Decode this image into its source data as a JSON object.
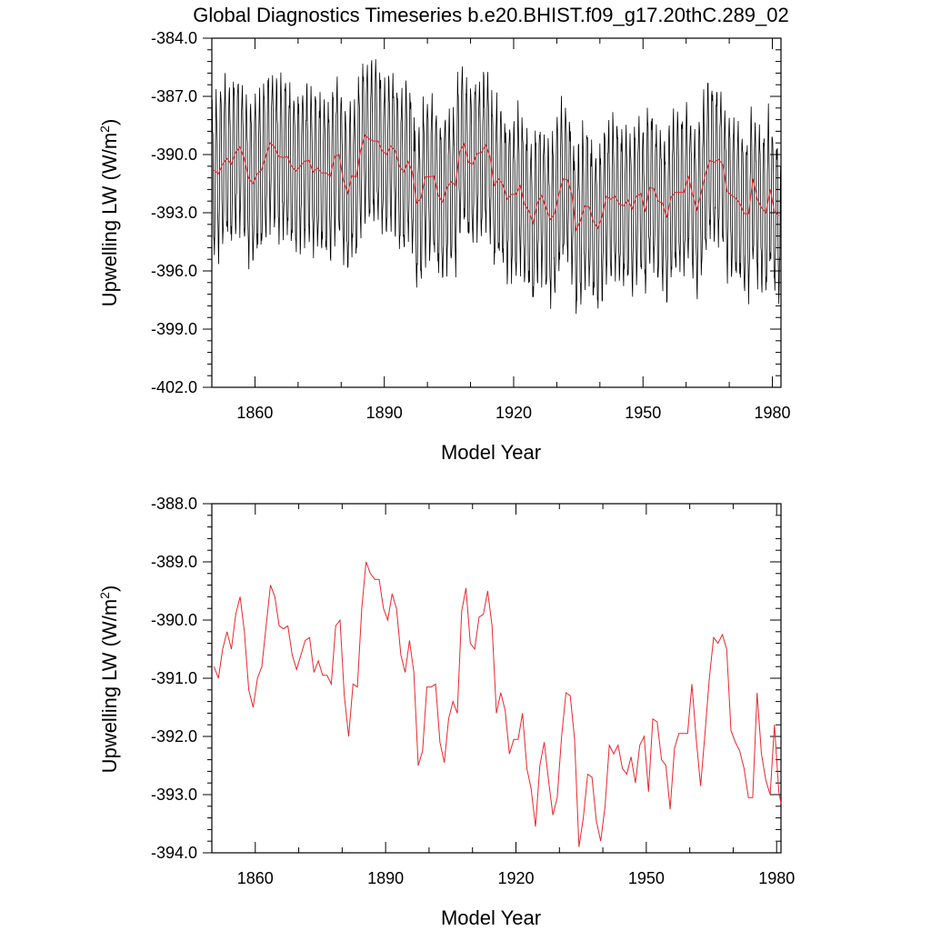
{
  "title": "Global Diagnostics Timeseries b.e20.BHIST.f09_g17.20thC.289_02",
  "colors": {
    "monthly": "#000000",
    "annual": "#e8282c",
    "axis": "#000000"
  },
  "chart_data": [
    {
      "type": "line",
      "xlabel": "Model Year",
      "ylabel": "Upwelling LW (W/m",
      "ylabel_sup": "2",
      "ylabel_close": ")",
      "xlim": [
        1850,
        1982
      ],
      "ylim": [
        -402.0,
        -384.0
      ],
      "xticks": [
        1860,
        1890,
        1920,
        1950,
        1980
      ],
      "xtick_labels": [
        "1860",
        "1890",
        "1920",
        "1950",
        "1980"
      ],
      "yticks": [
        -384.0,
        -387.0,
        -390.0,
        -393.0,
        -396.0,
        -399.0,
        -402.0
      ],
      "ytick_labels": [
        "-384.0",
        "-387.0",
        "-390.0",
        "-393.0",
        "-396.0",
        "-399.0",
        "-402.0"
      ],
      "series": [
        {
          "name": "monthly",
          "color": "#000000",
          "kind": "seasonal",
          "amplitude": 3.6,
          "values_ref": "annual_mean"
        },
        {
          "name": "annual_mean",
          "color": "#e8282c",
          "values_ref": "annual_mean"
        }
      ]
    },
    {
      "type": "line",
      "xlabel": "Model Year",
      "ylabel": "Upwelling LW (W/m",
      "ylabel_sup": "2",
      "ylabel_close": ")",
      "xlim": [
        1850,
        1981
      ],
      "ylim": [
        -394.0,
        -388.0
      ],
      "xticks": [
        1860,
        1890,
        1920,
        1950,
        1980
      ],
      "xtick_labels": [
        "1860",
        "1890",
        "1920",
        "1950",
        "1980"
      ],
      "yticks": [
        -388.0,
        -389.0,
        -390.0,
        -391.0,
        -392.0,
        -393.0,
        -394.0
      ],
      "ytick_labels": [
        "-388.0",
        "-389.0",
        "-390.0",
        "-391.0",
        "-392.0",
        "-393.0",
        "-394.0"
      ],
      "series": [
        {
          "name": "annual_mean",
          "color": "#e8282c",
          "values_ref": "annual_mean"
        }
      ]
    }
  ],
  "annual_mean": {
    "x": [
      1850,
      1851,
      1852,
      1853,
      1854,
      1855,
      1856,
      1857,
      1858,
      1859,
      1860,
      1861,
      1862,
      1863,
      1864,
      1865,
      1866,
      1867,
      1868,
      1869,
      1870,
      1871,
      1872,
      1873,
      1874,
      1875,
      1876,
      1877,
      1878,
      1879,
      1880,
      1881,
      1882,
      1883,
      1884,
      1885,
      1886,
      1887,
      1888,
      1889,
      1890,
      1891,
      1892,
      1893,
      1894,
      1895,
      1896,
      1897,
      1898,
      1899,
      1900,
      1901,
      1902,
      1903,
      1904,
      1905,
      1906,
      1907,
      1908,
      1909,
      1910,
      1911,
      1912,
      1913,
      1914,
      1915,
      1916,
      1917,
      1918,
      1919,
      1920,
      1921,
      1922,
      1923,
      1924,
      1925,
      1926,
      1927,
      1928,
      1929,
      1930,
      1931,
      1932,
      1933,
      1934,
      1935,
      1936,
      1937,
      1938,
      1939,
      1940,
      1941,
      1942,
      1943,
      1944,
      1945,
      1946,
      1947,
      1948,
      1949,
      1950,
      1951,
      1952,
      1953,
      1954,
      1955,
      1956,
      1957,
      1958,
      1959,
      1960,
      1961,
      1962,
      1963,
      1964,
      1965,
      1966,
      1967,
      1968,
      1969,
      1970,
      1971,
      1972,
      1973,
      1974,
      1975,
      1976,
      1977,
      1978,
      1979,
      1980,
      1981
    ],
    "y": [
      -390.8,
      -391.0,
      -390.5,
      -390.2,
      -390.5,
      -389.9,
      -389.6,
      -390.2,
      -391.2,
      -391.5,
      -391.0,
      -390.8,
      -390.1,
      -389.4,
      -389.6,
      -390.1,
      -390.15,
      -390.1,
      -390.6,
      -390.85,
      -390.6,
      -390.35,
      -390.3,
      -390.9,
      -390.7,
      -390.95,
      -390.95,
      -391.1,
      -390.1,
      -390.0,
      -391.3,
      -392.0,
      -391.1,
      -391.15,
      -389.8,
      -389.0,
      -389.2,
      -389.3,
      -389.3,
      -389.8,
      -390.0,
      -389.55,
      -389.8,
      -390.6,
      -390.9,
      -390.35,
      -390.9,
      -392.5,
      -392.25,
      -391.15,
      -391.15,
      -391.1,
      -392.1,
      -392.45,
      -391.7,
      -391.4,
      -391.6,
      -389.85,
      -389.45,
      -390.4,
      -390.5,
      -389.95,
      -389.9,
      -389.5,
      -390.1,
      -391.6,
      -391.25,
      -391.55,
      -392.3,
      -392.05,
      -392.05,
      -391.6,
      -392.55,
      -392.9,
      -393.55,
      -392.5,
      -392.1,
      -392.75,
      -393.35,
      -393.05,
      -392.0,
      -391.25,
      -391.3,
      -392.05,
      -393.9,
      -393.4,
      -392.65,
      -392.7,
      -393.45,
      -393.8,
      -393.2,
      -392.15,
      -392.3,
      -392.15,
      -392.55,
      -392.65,
      -392.35,
      -392.8,
      -392.15,
      -392.0,
      -392.95,
      -391.7,
      -391.75,
      -392.4,
      -392.5,
      -393.25,
      -392.2,
      -391.95,
      -391.95,
      -391.95,
      -391.1,
      -392.05,
      -392.85,
      -391.95,
      -391.0,
      -390.3,
      -390.4,
      -390.25,
      -390.5,
      -391.9,
      -392.1,
      -392.25,
      -392.55,
      -393.05,
      -393.05,
      -391.25,
      -392.3,
      -392.75,
      -393.0,
      -391.8,
      -392.95,
      -393.15
    ]
  }
}
